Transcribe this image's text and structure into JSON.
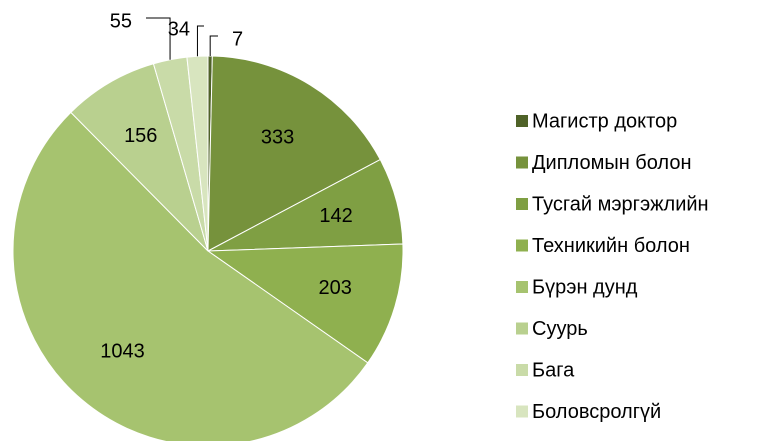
{
  "chart_data": {
    "type": "pie",
    "categories": [
      "Магистр доктор",
      "Дипломын болон",
      "Тусгай мэргэжлийн",
      "Техникийн болон",
      "Бүрэн дунд",
      "Суурь",
      "Бага",
      "Боловсролгүй"
    ],
    "values": [
      7,
      333,
      142,
      203,
      1043,
      156,
      55,
      34
    ],
    "colors": [
      "#4f6228",
      "#76923c",
      "#7f9f43",
      "#8fb04f",
      "#a6c36f",
      "#b9d08f",
      "#c9dba8",
      "#d8e5bf"
    ],
    "legend": "right"
  }
}
